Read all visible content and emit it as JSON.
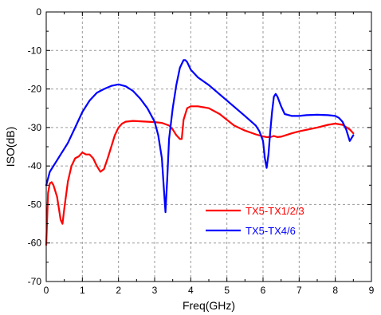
{
  "chart_data": {
    "type": "line",
    "title": "",
    "xlabel": "Freq(GHz)",
    "ylabel": "ISO(dB)",
    "xlim": [
      0,
      9
    ],
    "ylim": [
      -70,
      0
    ],
    "xticks": [
      0,
      1,
      2,
      3,
      4,
      5,
      6,
      7,
      8,
      9
    ],
    "yticks": [
      0,
      -10,
      -20,
      -30,
      -40,
      -50,
      -60,
      -70
    ],
    "xtick_labels": [
      "0",
      "1",
      "2",
      "3",
      "4",
      "5",
      "6",
      "7",
      "8",
      "9"
    ],
    "ytick_labels": [
      "0",
      "-10",
      "-20",
      "-30",
      "-40",
      "-50",
      "-60",
      "-70"
    ],
    "grid": true,
    "legend_position": "lower-right",
    "series": [
      {
        "name": "TX5-TX1/2/3",
        "color": "#ff0000",
        "x": [
          0.0,
          0.05,
          0.1,
          0.15,
          0.2,
          0.3,
          0.4,
          0.45,
          0.5,
          0.6,
          0.7,
          0.8,
          0.9,
          1.0,
          1.1,
          1.2,
          1.3,
          1.4,
          1.5,
          1.6,
          1.7,
          1.8,
          1.9,
          2.0,
          2.1,
          2.2,
          2.4,
          2.6,
          2.8,
          3.0,
          3.2,
          3.4,
          3.5,
          3.6,
          3.7,
          3.75,
          3.8,
          3.9,
          4.0,
          4.2,
          4.5,
          4.8,
          5.0,
          5.2,
          5.5,
          5.8,
          6.0,
          6.1,
          6.2,
          6.3,
          6.4,
          6.5,
          6.8,
          7.0,
          7.5,
          7.8,
          8.0,
          8.2,
          8.4,
          8.5
        ],
        "y": [
          -60.5,
          -47,
          -44.5,
          -44.2,
          -45,
          -48,
          -54,
          -55,
          -51,
          -44,
          -40,
          -38,
          -37.5,
          -36.5,
          -37,
          -37,
          -38,
          -40,
          -41.5,
          -40.8,
          -38,
          -35,
          -32,
          -30,
          -29,
          -28.5,
          -28.3,
          -28.4,
          -28.5,
          -28.6,
          -28.8,
          -29.5,
          -30.5,
          -32,
          -33,
          -33,
          -28,
          -25,
          -24.5,
          -24.5,
          -25,
          -26.5,
          -28,
          -29.5,
          -30.8,
          -31.8,
          -32.3,
          -32.5,
          -32.5,
          -32.2,
          -32.5,
          -32.4,
          -31.5,
          -31,
          -30,
          -29.3,
          -29,
          -29.3,
          -30.5,
          -31.5
        ]
      },
      {
        "name": "TX5-TX4/6",
        "color": "#0000ff",
        "x": [
          0.0,
          0.1,
          0.2,
          0.3,
          0.4,
          0.5,
          0.6,
          0.8,
          1.0,
          1.2,
          1.4,
          1.6,
          1.8,
          2.0,
          2.2,
          2.4,
          2.6,
          2.8,
          3.0,
          3.1,
          3.2,
          3.25,
          3.3,
          3.35,
          3.4,
          3.5,
          3.6,
          3.7,
          3.8,
          3.85,
          3.9,
          4.0,
          4.2,
          4.5,
          5.0,
          5.5,
          5.8,
          5.9,
          6.0,
          6.05,
          6.1,
          6.15,
          6.2,
          6.25,
          6.3,
          6.35,
          6.4,
          6.5,
          6.6,
          6.8,
          7.0,
          7.2,
          7.5,
          7.8,
          8.0,
          8.1,
          8.2,
          8.3,
          8.4,
          8.5
        ],
        "y": [
          -45,
          -41.5,
          -40,
          -38.5,
          -37,
          -35.5,
          -34,
          -30,
          -26,
          -23,
          -21,
          -20,
          -19.2,
          -18.8,
          -19.3,
          -20.5,
          -22.5,
          -25,
          -28.5,
          -32,
          -38,
          -45,
          -52,
          -43,
          -33,
          -25,
          -19,
          -14.5,
          -12.5,
          -12.5,
          -13,
          -15,
          -17,
          -19,
          -23,
          -27,
          -29.5,
          -31,
          -33.5,
          -38,
          -40.5,
          -37,
          -31,
          -26,
          -22,
          -21.3,
          -22,
          -24.5,
          -26.5,
          -27,
          -27,
          -26.8,
          -26.7,
          -26.8,
          -27,
          -27.5,
          -28.5,
          -30.5,
          -33.5,
          -32
        ]
      }
    ]
  }
}
